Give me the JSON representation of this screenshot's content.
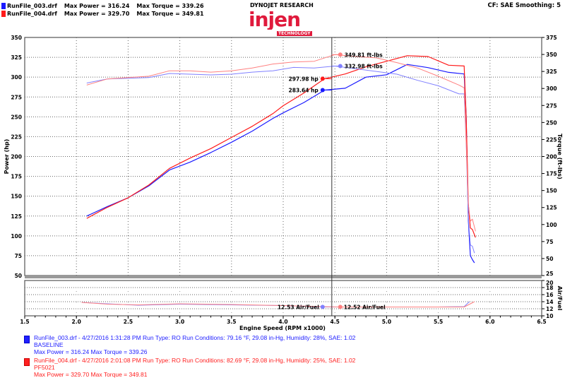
{
  "header": {
    "runs": [
      {
        "file": "RunFile_003.drf",
        "max_power": "Max Power = 316.24",
        "max_torque": "Max Torque = 339.26",
        "color": "#1a1aff"
      },
      {
        "file": "RunFile_004.drf",
        "max_power": "Max Power = 329.70",
        "max_torque": "Max Torque = 349.81",
        "color": "#ff1a1a"
      }
    ],
    "brand": "DYNOJET RESEARCH",
    "logo_text": "injen TECHNOLOGY",
    "settings": "CF: SAE  Smoothing: 5"
  },
  "legend": [
    {
      "line1": "RunFile_003.drf - 4/27/2016 1:31:28 PM  Run Type: RO  Run Conditions: 79.16 °F, 29.08 in-Hg,  Humidity:  28%, SAE: 1.02",
      "line2": "BASELINE",
      "line3": "Max Power = 316.24  Max Torque = 339.26",
      "color": "#2020ff"
    },
    {
      "line1": "RunFile_004.drf - 4/27/2016 2:01:08 PM  Run Type: RO  Run Conditions: 82.69 °F, 29.08 in-Hg,  Humidity:  25%, SAE: 1.02",
      "line2": "PF5021",
      "line3": "Max Power = 329.70  Max Torque = 349.81",
      "color": "#ff2020"
    }
  ],
  "chart_data": [
    {
      "type": "line",
      "xlabel": "Engine Speed (RPM x1000)",
      "ylabel": "Power (hp)",
      "y2label": "Torque (ft-lbs)",
      "xlim": [
        1.5,
        6.5
      ],
      "ylim": [
        50,
        350
      ],
      "y2lim": [
        25,
        375
      ],
      "xticks": [
        "1.5",
        "2.0",
        "2.5",
        "3.0",
        "3.5",
        "4.0",
        "4.5",
        "5.0",
        "5.5",
        "6.0",
        "6.5"
      ],
      "yticks": [
        "50",
        "75",
        "100",
        "125",
        "150",
        "175",
        "200",
        "225",
        "250",
        "275",
        "300",
        "325",
        "350"
      ],
      "y2ticks": [
        "25",
        "50",
        "75",
        "100",
        "125",
        "150",
        "175",
        "200",
        "225",
        "250",
        "275",
        "300",
        "325",
        "350",
        "375"
      ],
      "grid": true,
      "cursor_rpm": 4.47,
      "series": [
        {
          "name": "RunFile_003.drf",
          "quantity": "power",
          "color": "#1a1aff",
          "x": [
            2.1,
            2.3,
            2.5,
            2.7,
            2.9,
            3.1,
            3.3,
            3.5,
            3.7,
            3.9,
            4.0,
            4.2,
            4.4,
            4.6,
            4.8,
            5.0,
            5.2,
            5.4,
            5.6,
            5.75,
            5.77,
            5.79,
            5.81,
            5.83,
            5.85
          ],
          "y": [
            125,
            137,
            148,
            163,
            183,
            193,
            205,
            218,
            232,
            248,
            255,
            268,
            283.64,
            286,
            300,
            303,
            316,
            312,
            306,
            304,
            250,
            120,
            75,
            70,
            66
          ]
        },
        {
          "name": "RunFile_004.drf",
          "quantity": "power",
          "color": "#ff1a1a",
          "x": [
            2.1,
            2.3,
            2.5,
            2.7,
            2.9,
            3.1,
            3.3,
            3.5,
            3.7,
            3.9,
            4.0,
            4.2,
            4.4,
            4.6,
            4.8,
            5.0,
            5.2,
            5.4,
            5.6,
            5.75,
            5.77,
            5.79,
            5.81,
            5.83,
            5.86
          ],
          "y": [
            122,
            136,
            148,
            164,
            185,
            198,
            210,
            224,
            238,
            254,
            264,
            280,
            297.98,
            304,
            313,
            320,
            327,
            326,
            315,
            314,
            250,
            140,
            110,
            108,
            98
          ]
        },
        {
          "name": "RunFile_003.drf",
          "quantity": "torque",
          "color": "#8080ff",
          "x": [
            2.1,
            2.3,
            2.5,
            2.7,
            2.9,
            3.1,
            3.3,
            3.5,
            3.7,
            3.9,
            4.1,
            4.3,
            4.5,
            4.7,
            4.9,
            5.1,
            5.3,
            5.5,
            5.7,
            5.75,
            5.77,
            5.79,
            5.81,
            5.83,
            5.85
          ],
          "y": [
            308,
            314,
            315,
            316,
            322,
            321,
            320,
            321,
            324,
            326,
            331,
            330,
            332.98,
            329,
            325,
            321,
            312,
            304,
            292,
            292,
            220,
            110,
            70,
            68,
            58
          ]
        },
        {
          "name": "RunFile_004.drf",
          "quantity": "torque",
          "color": "#ff8080",
          "x": [
            2.1,
            2.3,
            2.5,
            2.7,
            2.9,
            3.1,
            3.3,
            3.5,
            3.7,
            3.9,
            4.1,
            4.3,
            4.5,
            4.7,
            4.9,
            5.1,
            5.3,
            5.5,
            5.7,
            5.75,
            5.77,
            5.79,
            5.81,
            5.83,
            5.86
          ],
          "y": [
            305,
            314,
            316,
            318,
            326,
            326,
            324,
            326,
            330,
            336,
            339,
            340,
            349.81,
            347,
            345,
            338,
            330,
            318,
            305,
            301,
            220,
            130,
            105,
            108,
            90
          ]
        }
      ],
      "markers": [
        {
          "label": "297.98 hp",
          "value": 297.98,
          "axis": "power",
          "color": "#ff1a1a"
        },
        {
          "label": "283.64 hp",
          "value": 283.64,
          "axis": "power",
          "color": "#1a1aff"
        },
        {
          "label": "349.81 ft-lbs",
          "value": 349.81,
          "axis": "torque",
          "color": "#ff8080"
        },
        {
          "label": "332.98 ft-lbs",
          "value": 332.98,
          "axis": "torque",
          "color": "#8080ff"
        }
      ]
    },
    {
      "type": "line",
      "y2label": "Air/Fuel",
      "y2lim": [
        10,
        20
      ],
      "y2ticks": [
        "10",
        "12",
        "14",
        "16",
        "18",
        "20"
      ],
      "series": [
        {
          "name": "RunFile_003.drf",
          "color": "#8080ff",
          "x": [
            2.05,
            2.3,
            2.6,
            3.0,
            3.5,
            4.0,
            4.4,
            4.5,
            5.0,
            5.5,
            5.75,
            5.8
          ],
          "y": [
            13.8,
            13.4,
            13.0,
            13.3,
            13.1,
            12.9,
            12.53,
            12.5,
            12.5,
            12.5,
            12.6,
            14.0
          ]
        },
        {
          "name": "RunFile_004.drf",
          "color": "#ff8080",
          "x": [
            2.05,
            2.3,
            2.6,
            3.0,
            3.5,
            4.0,
            4.5,
            4.55,
            5.0,
            5.5,
            5.75,
            5.85
          ],
          "y": [
            13.8,
            13.3,
            13.1,
            13.4,
            13.2,
            12.9,
            12.52,
            12.5,
            12.5,
            12.5,
            12.5,
            14.0
          ]
        }
      ],
      "markers": [
        {
          "label": "12.53 Air/Fuel",
          "value": 12.53,
          "color": "#8080ff"
        },
        {
          "label": "12.52 Air/Fuel",
          "value": 12.52,
          "color": "#ff8080"
        }
      ]
    }
  ]
}
